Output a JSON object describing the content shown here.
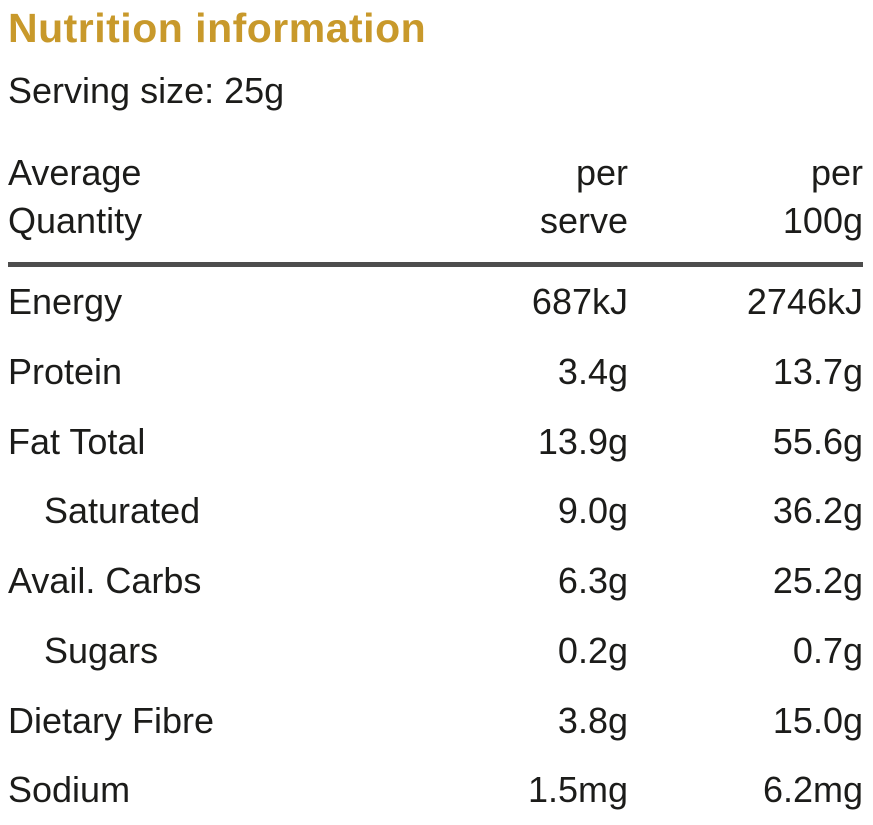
{
  "title": "Nutrition information",
  "serving_size": "Serving size: 25g",
  "colors": {
    "accent": "#c8992b",
    "text": "#1c1c1a",
    "rule": "#4d4d4d",
    "background": "#ffffff"
  },
  "table": {
    "header": {
      "quantity": "Average\nQuantity",
      "per_serve": "per\nserve",
      "per_100g": "per\n100g"
    },
    "rows": [
      {
        "label": "Energy",
        "per_serve": "687kJ",
        "per_100g": "2746kJ",
        "indent": false
      },
      {
        "label": "Protein",
        "per_serve": "3.4g",
        "per_100g": "13.7g",
        "indent": false
      },
      {
        "label": "Fat Total",
        "per_serve": "13.9g",
        "per_100g": "55.6g",
        "indent": false
      },
      {
        "label": "Saturated",
        "per_serve": "9.0g",
        "per_100g": "36.2g",
        "indent": true
      },
      {
        "label": "Avail. Carbs",
        "per_serve": "6.3g",
        "per_100g": "25.2g",
        "indent": false
      },
      {
        "label": "Sugars",
        "per_serve": "0.2g",
        "per_100g": "0.7g",
        "indent": true
      },
      {
        "label": "Dietary Fibre",
        "per_serve": "3.8g",
        "per_100g": "15.0g",
        "indent": false
      },
      {
        "label": "Sodium",
        "per_serve": "1.5mg",
        "per_100g": "6.2mg",
        "indent": false
      }
    ]
  }
}
